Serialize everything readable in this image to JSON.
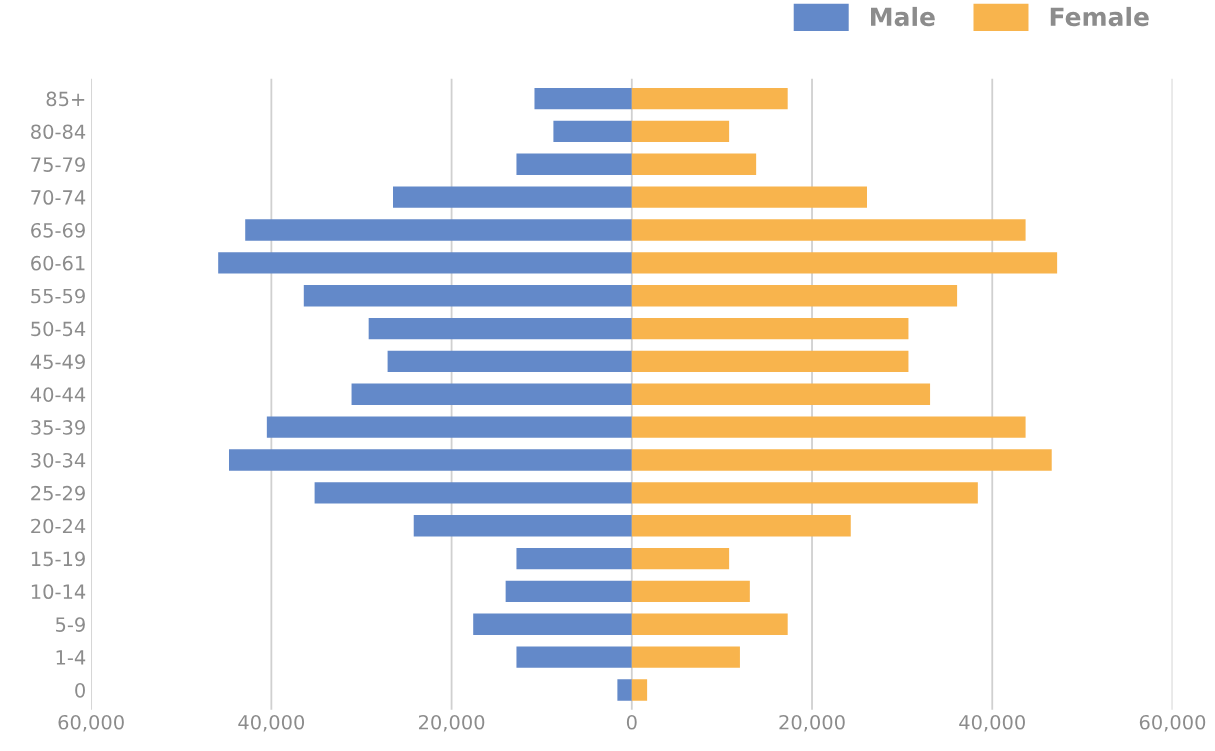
{
  "chart_data": {
    "type": "bar",
    "orientation": "horizontal",
    "stacked": true,
    "categories": [
      "85+",
      "80-84",
      "75-79",
      "70-74",
      "65-69",
      "60-61",
      "55-59",
      "50-54",
      "45-49",
      "40-44",
      "35-39",
      "30-34",
      "25-29",
      "20-24",
      "15-19",
      "10-14",
      "5-9",
      "1-4",
      "0"
    ],
    "series": [
      {
        "name": "Male",
        "color": "#6389c9",
        "values": [
          -10800,
          -8700,
          -12800,
          -26500,
          -42900,
          -45900,
          -36400,
          -29200,
          -27100,
          -31100,
          -40500,
          -44700,
          -35200,
          -24200,
          -12800,
          -14000,
          -17600,
          -12800,
          -1600
        ]
      },
      {
        "name": "Female",
        "color": "#f8b44d",
        "values": [
          17300,
          10800,
          13800,
          26100,
          43700,
          47200,
          36100,
          30700,
          30700,
          33100,
          43700,
          46600,
          38400,
          24300,
          10800,
          13100,
          17300,
          12000,
          1700
        ]
      }
    ],
    "xlim": [
      -60000,
      60000
    ],
    "xticks": [
      {
        "value": -60000,
        "label": "60,000"
      },
      {
        "value": -40000,
        "label": "40,000"
      },
      {
        "value": -20000,
        "label": "20,000"
      },
      0,
      {
        "value": 20000,
        "label": "20,000"
      },
      {
        "value": 40000,
        "label": "40,000"
      },
      {
        "value": 60000,
        "label": "60,000"
      }
    ],
    "grid": "x",
    "legend": "top right"
  }
}
